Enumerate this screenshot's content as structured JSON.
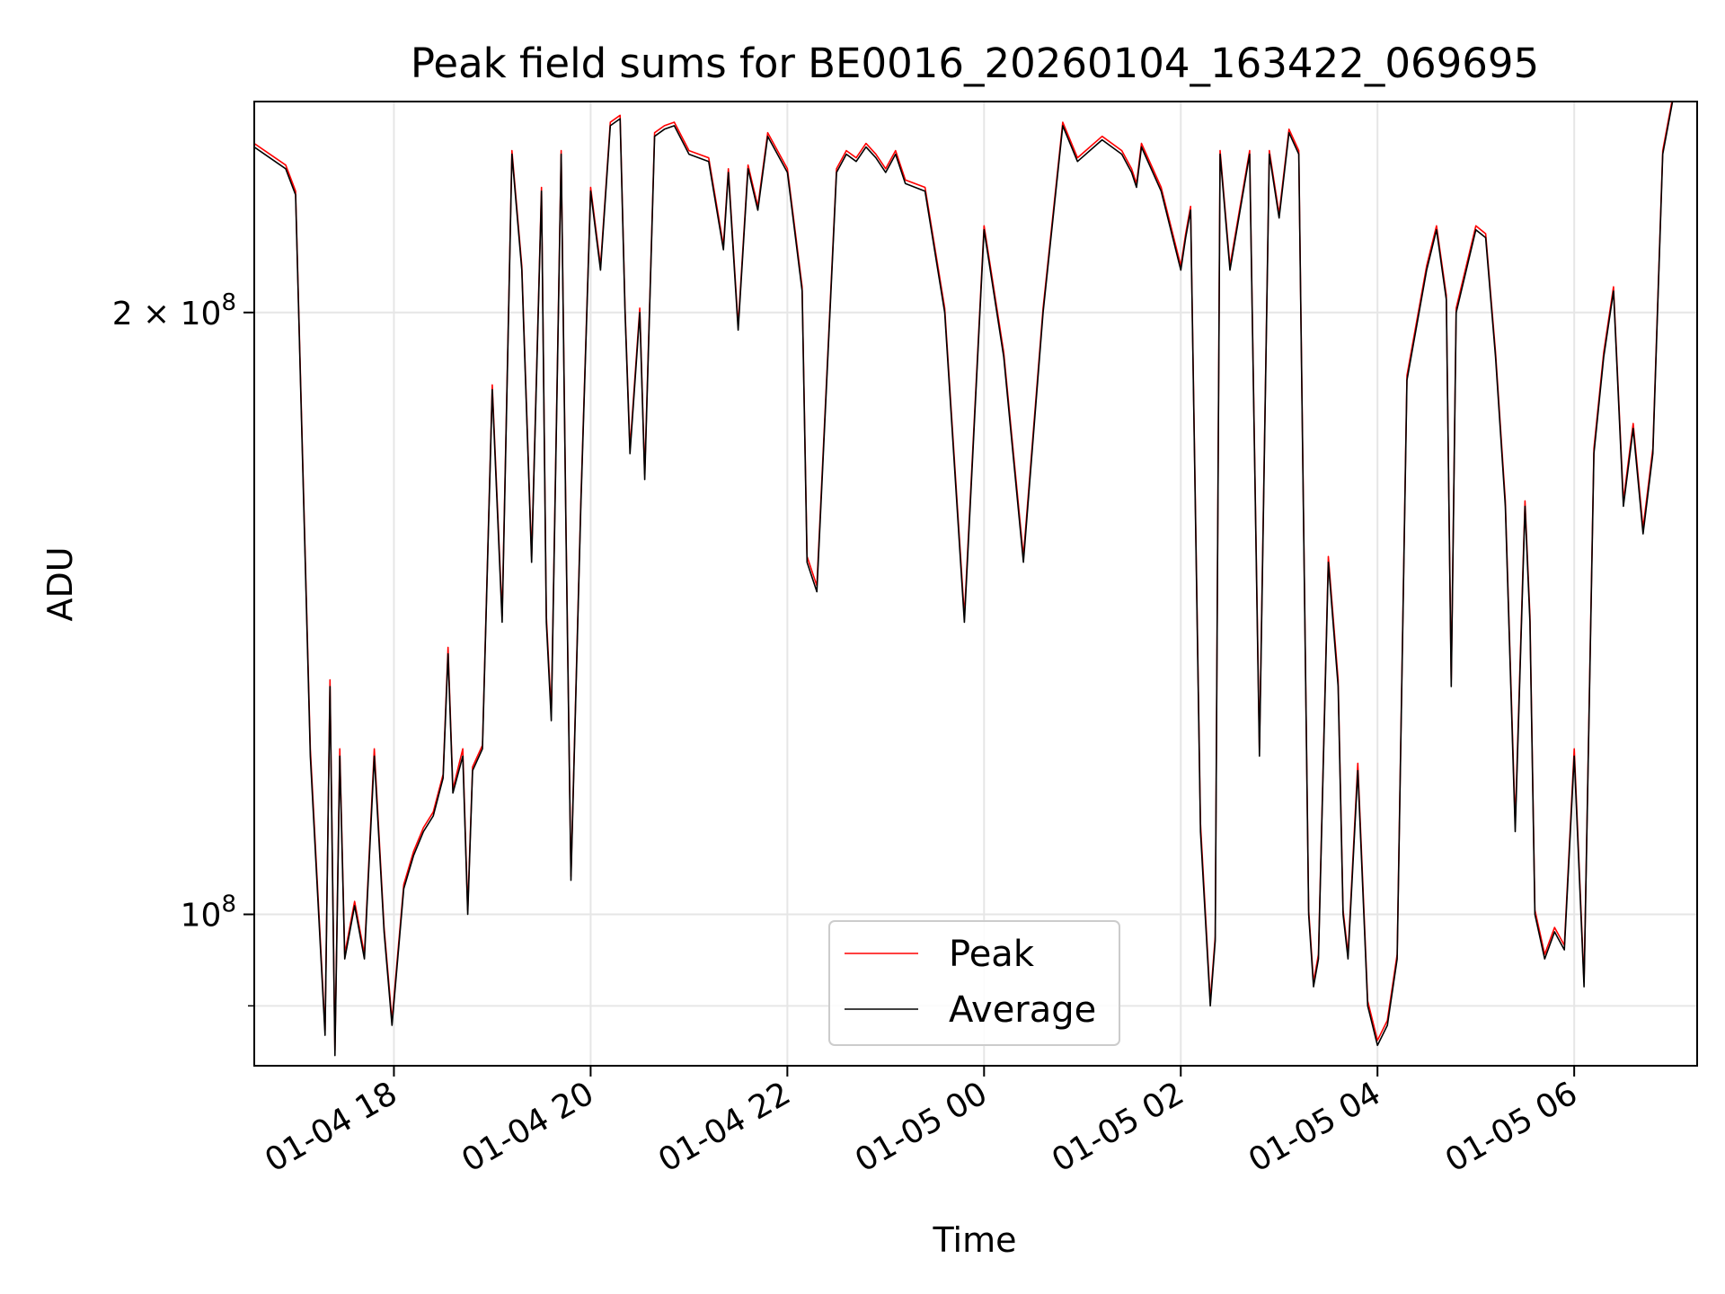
{
  "chart_data": {
    "type": "line",
    "title": "Peak field sums for BE0016_20260104_163422_069695",
    "xlabel": "Time",
    "ylabel": "ADU",
    "yscale": "log",
    "ylim": [
      84000000,
      255000000
    ],
    "xlim_hours": [
      16.58,
      31.25
    ],
    "grid": true,
    "legend_position": "lower-center",
    "x_ticks": [
      {
        "hour": 18,
        "label": "01-04 18"
      },
      {
        "hour": 20,
        "label": "01-04 20"
      },
      {
        "hour": 22,
        "label": "01-04 22"
      },
      {
        "hour": 24,
        "label": "01-05 00"
      },
      {
        "hour": 26,
        "label": "01-05 02"
      },
      {
        "hour": 28,
        "label": "01-05 04"
      },
      {
        "hour": 30,
        "label": "01-05 06"
      }
    ],
    "y_ticks": [
      {
        "value": 200000000,
        "base": "2 × 10",
        "exp": "8"
      },
      {
        "value": 100000000,
        "base": "10",
        "exp": "8"
      }
    ],
    "y_minor_gridlines": [
      90000000
    ],
    "series": [
      {
        "name": "Peak",
        "color": "#ff0000"
      },
      {
        "name": "Average",
        "color": "#000000"
      }
    ],
    "x_hours": [
      16.58,
      16.9,
      17.0,
      17.15,
      17.3,
      17.35,
      17.4,
      17.45,
      17.5,
      17.6,
      17.7,
      17.8,
      17.9,
      17.98,
      18.1,
      18.2,
      18.3,
      18.4,
      18.5,
      18.55,
      18.6,
      18.7,
      18.75,
      18.8,
      18.9,
      19.0,
      19.1,
      19.2,
      19.3,
      19.4,
      19.5,
      19.55,
      19.6,
      19.7,
      19.75,
      19.8,
      19.9,
      20.0,
      20.1,
      20.2,
      20.3,
      20.35,
      20.4,
      20.5,
      20.55,
      20.65,
      20.75,
      20.85,
      21.0,
      21.2,
      21.35,
      21.4,
      21.5,
      21.6,
      21.7,
      21.8,
      22.0,
      22.15,
      22.2,
      22.3,
      22.5,
      22.6,
      22.7,
      22.8,
      22.9,
      23.0,
      23.1,
      23.2,
      23.4,
      23.6,
      23.8,
      24.0,
      24.2,
      24.4,
      24.6,
      24.8,
      24.95,
      25.2,
      25.4,
      25.5,
      25.55,
      25.6,
      25.8,
      26.0,
      26.05,
      26.1,
      26.2,
      26.3,
      26.35,
      26.4,
      26.5,
      26.7,
      26.8,
      26.9,
      27.0,
      27.1,
      27.2,
      27.3,
      27.35,
      27.4,
      27.5,
      27.6,
      27.65,
      27.7,
      27.8,
      27.9,
      28.0,
      28.1,
      28.2,
      28.3,
      28.5,
      28.6,
      28.7,
      28.75,
      28.8,
      29.0,
      29.1,
      29.2,
      29.3,
      29.4,
      29.5,
      29.55,
      29.6,
      29.7,
      29.8,
      29.9,
      30.0,
      30.1,
      30.2,
      30.3,
      30.4,
      30.5,
      30.6,
      30.7,
      30.8,
      30.9,
      31.0,
      31.25
    ],
    "avg_values": [
      242000000,
      236000000,
      229000000,
      120000000,
      87000000,
      130000000,
      85000000,
      120000000,
      95000000,
      101000000,
      95000000,
      120000000,
      98000000,
      88000000,
      103000000,
      107000000,
      110000000,
      112000000,
      117000000,
      135000000,
      115000000,
      120000000,
      100000000,
      118000000,
      121000000,
      183000000,
      140000000,
      240000000,
      210000000,
      150000000,
      230000000,
      140000000,
      125000000,
      240000000,
      155000000,
      104000000,
      160000000,
      230000000,
      210000000,
      248000000,
      250000000,
      200000000,
      170000000,
      200000000,
      165000000,
      245000000,
      247000000,
      248000000,
      240000000,
      238000000,
      215000000,
      235000000,
      196000000,
      236000000,
      225000000,
      245000000,
      235000000,
      205000000,
      150000000,
      145000000,
      235000000,
      240000000,
      238000000,
      242000000,
      239000000,
      235000000,
      240000000,
      232000000,
      230000000,
      200000000,
      140000000,
      220000000,
      190000000,
      150000000,
      200000000,
      248000000,
      238000000,
      244000000,
      240000000,
      235000000,
      231000000,
      242000000,
      230000000,
      210000000,
      218000000,
      225000000,
      110000000,
      90000000,
      97000000,
      240000000,
      210000000,
      240000000,
      120000000,
      240000000,
      223000000,
      246000000,
      240000000,
      100000000,
      92000000,
      95000000,
      150000000,
      130000000,
      100000000,
      95000000,
      118000000,
      90000000,
      86000000,
      88000000,
      95000000,
      185000000,
      210000000,
      220000000,
      203000000,
      130000000,
      200000000,
      220000000,
      218000000,
      190000000,
      160000000,
      110000000,
      160000000,
      140000000,
      100000000,
      95000000,
      98000000,
      96000000,
      120000000,
      92000000,
      170000000,
      190000000,
      205000000,
      160000000,
      175000000,
      155000000,
      170000000,
      240000000,
      255000000,
      255000000
    ],
    "peak_values": [
      243000000,
      237000000,
      230000000,
      121000000,
      87500000,
      131000000,
      85500000,
      121000000,
      95500000,
      101500000,
      95500000,
      121000000,
      98500000,
      88500000,
      103500000,
      107500000,
      110500000,
      112500000,
      117500000,
      136000000,
      115500000,
      121000000,
      100500000,
      118500000,
      121500000,
      184000000,
      141000000,
      241000000,
      211000000,
      151000000,
      231000000,
      141000000,
      126000000,
      241000000,
      156000000,
      104500000,
      161000000,
      231000000,
      211000000,
      249000000,
      251000000,
      201000000,
      171000000,
      201000000,
      166000000,
      246000000,
      248000000,
      249000000,
      241000000,
      239000000,
      216000000,
      236000000,
      197000000,
      237000000,
      226000000,
      246000000,
      236000000,
      206000000,
      151000000,
      146000000,
      236000000,
      241000000,
      239000000,
      243000000,
      240000000,
      236000000,
      241000000,
      233000000,
      231000000,
      201000000,
      141000000,
      221000000,
      191000000,
      151000000,
      201000000,
      249000000,
      239000000,
      245000000,
      241000000,
      236000000,
      232000000,
      243000000,
      231000000,
      211000000,
      219000000,
      226000000,
      111000000,
      90500000,
      97500000,
      241000000,
      211000000,
      241000000,
      121000000,
      241000000,
      224000000,
      247000000,
      241000000,
      100500000,
      92500000,
      95500000,
      151000000,
      131000000,
      100500000,
      95500000,
      119000000,
      90500000,
      86500000,
      88500000,
      95500000,
      186000000,
      211000000,
      221000000,
      204000000,
      131000000,
      201000000,
      221000000,
      219000000,
      191000000,
      161000000,
      111000000,
      161000000,
      141000000,
      100500000,
      95500000,
      98500000,
      96500000,
      121000000,
      92500000,
      171000000,
      191000000,
      206000000,
      161000000,
      176000000,
      156000000,
      171000000,
      241000000,
      256000000,
      256000000
    ]
  }
}
